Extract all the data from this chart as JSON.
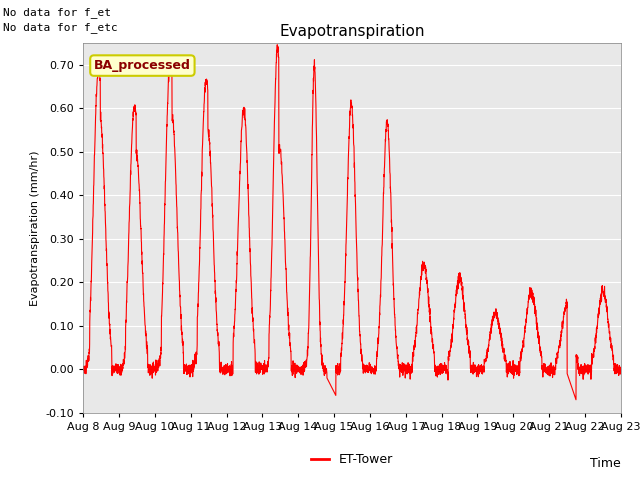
{
  "title": "Evapotranspiration",
  "ylabel": "Evapotranspiration (mm/hr)",
  "xlabel": "Time",
  "ylim": [
    -0.1,
    0.75
  ],
  "yticks": [
    -0.1,
    0.0,
    0.1,
    0.2,
    0.3,
    0.4,
    0.5,
    0.6,
    0.7
  ],
  "line_color": "red",
  "line_width": 0.8,
  "legend_label": "ET-Tower",
  "legend_line_color": "red",
  "annotation1": "No data for f_et",
  "annotation2": "No data for f_etc",
  "box_label": "BA_processed",
  "box_bg": "#ffffcc",
  "box_border": "#cccc00",
  "background_color": "#e8e8e8",
  "num_points": 3600
}
